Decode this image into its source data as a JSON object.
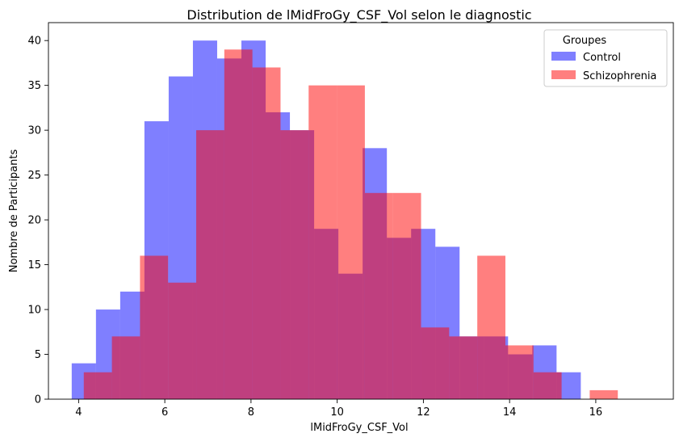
{
  "chart_data": {
    "type": "bar",
    "subtype": "overlapping-histogram",
    "title": "Distribution de lMidFroGy_CSF_Vol selon le diagnostic",
    "xlabel": "lMidFroGy_CSF_Vol",
    "ylabel": "Nombre de Participants",
    "xlim": [
      3.3,
      17.8
    ],
    "ylim": [
      0,
      42
    ],
    "xticks": [
      4,
      6,
      8,
      10,
      12,
      14,
      16
    ],
    "yticks": [
      0,
      5,
      10,
      15,
      20,
      25,
      30,
      35,
      40
    ],
    "grid": false,
    "legend": {
      "title": "Groupes",
      "placement": "top-right"
    },
    "series": [
      {
        "name": "Control",
        "color": "#0000ff",
        "opacity": 0.5,
        "bin_start": 3.84,
        "bin_width": 0.5625,
        "counts": [
          4,
          10,
          12,
          31,
          36,
          40,
          38,
          40,
          32,
          30,
          19,
          14,
          28,
          18,
          19,
          17,
          7,
          7,
          5,
          6,
          3
        ]
      },
      {
        "name": "Schizophrenia",
        "color": "#ff0000",
        "opacity": 0.5,
        "bin_start": 4.12,
        "bin_width": 0.6522,
        "counts": [
          3,
          7,
          16,
          13,
          30,
          39,
          37,
          30,
          35,
          35,
          23,
          23,
          8,
          7,
          16,
          6,
          3,
          0,
          1
        ]
      }
    ]
  }
}
